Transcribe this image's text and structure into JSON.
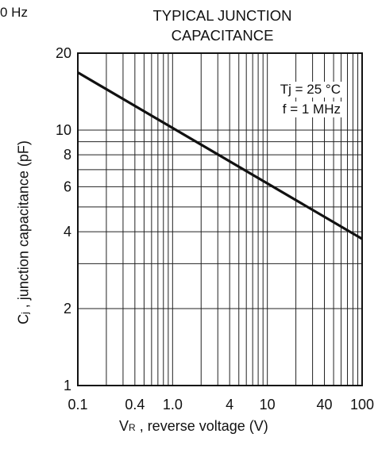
{
  "header": {
    "fragment": "0 Hz",
    "title_line1": "TYPICAL JUNCTION",
    "title_line2": "CAPACITANCE"
  },
  "annotations": {
    "tj": "Tj = 25 °C",
    "f": "f = 1 MHz"
  },
  "axes": {
    "xlabel_sym": "V",
    "xlabel_sub": "R",
    "xlabel_rest": " , reverse voltage (V)",
    "ylabel_sym": "C",
    "ylabel_sub": "j",
    "ylabel_rest": " , junction capacitance (pF)"
  },
  "chart_data": {
    "type": "line",
    "xscale": "log",
    "yscale": "log",
    "xlim": [
      0.1,
      100
    ],
    "ylim": [
      1,
      20
    ],
    "x_ticks": [
      {
        "value": 0.1,
        "label": "0.1"
      },
      {
        "value": 0.4,
        "label": "0.4"
      },
      {
        "value": 1.0,
        "label": "1.0"
      },
      {
        "value": 4,
        "label": "4"
      },
      {
        "value": 10,
        "label": "10"
      },
      {
        "value": 40,
        "label": "40"
      },
      {
        "value": 100,
        "label": "100"
      }
    ],
    "y_ticks": [
      {
        "value": 1,
        "label": "1"
      },
      {
        "value": 2,
        "label": "2"
      },
      {
        "value": 4,
        "label": "4"
      },
      {
        "value": 6,
        "label": "6"
      },
      {
        "value": 8,
        "label": "8"
      },
      {
        "value": 10,
        "label": "10"
      },
      {
        "value": 20,
        "label": "20"
      }
    ],
    "x_grid": [
      0.2,
      0.3,
      0.4,
      0.5,
      0.6,
      0.7,
      0.8,
      0.9,
      1,
      2,
      3,
      4,
      5,
      6,
      7,
      8,
      9,
      10,
      20,
      30,
      40,
      50,
      60,
      70,
      80,
      90
    ],
    "y_grid": [
      2,
      3,
      4,
      5,
      6,
      7,
      8,
      9,
      10
    ],
    "grid": true,
    "series": [
      {
        "x": [
          0.1,
          100
        ],
        "y": [
          16.8,
          3.75
        ]
      }
    ]
  }
}
